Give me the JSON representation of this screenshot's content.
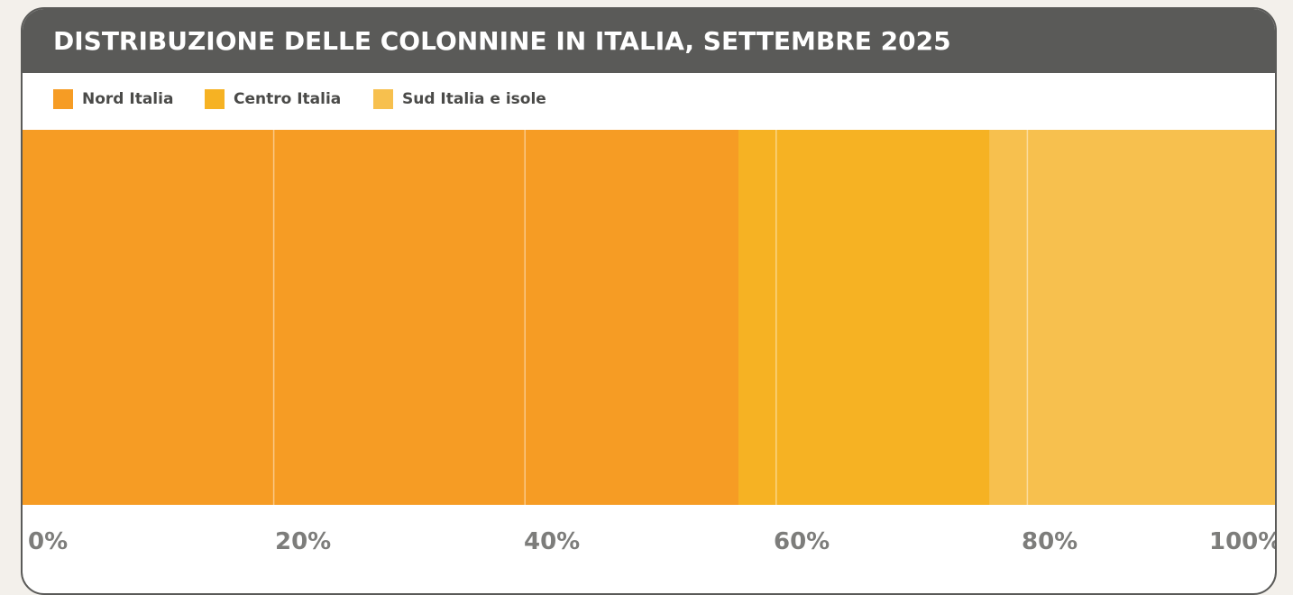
{
  "chart_data": {
    "type": "bar",
    "orientation": "horizontal",
    "stacked": true,
    "normalized": true,
    "title": "DISTRIBUZIONE DELLE COLONNINE IN ITALIA, SETTEMBRE 2025",
    "xlabel": "",
    "ylabel": "",
    "xlim": [
      0,
      100
    ],
    "ticks": [
      "0%",
      "20%",
      "40%",
      "60%",
      "80%",
      "100%"
    ],
    "tick_values": [
      0,
      20,
      40,
      60,
      80,
      100
    ],
    "grid": true,
    "legend_position": "top-left",
    "series": [
      {
        "name": "Nord Italia",
        "value": 57,
        "color": "#f69c24"
      },
      {
        "name": "Centro Italia",
        "value": 20,
        "color": "#f6b223"
      },
      {
        "name": "Sud Italia e isole",
        "value": 23,
        "color": "#f7c04e"
      }
    ]
  },
  "colors": {
    "title_bar": "#5a5a58",
    "title_text": "#ffffff",
    "tick_text": "#7d7d7b",
    "background": "#f3f0eb"
  }
}
